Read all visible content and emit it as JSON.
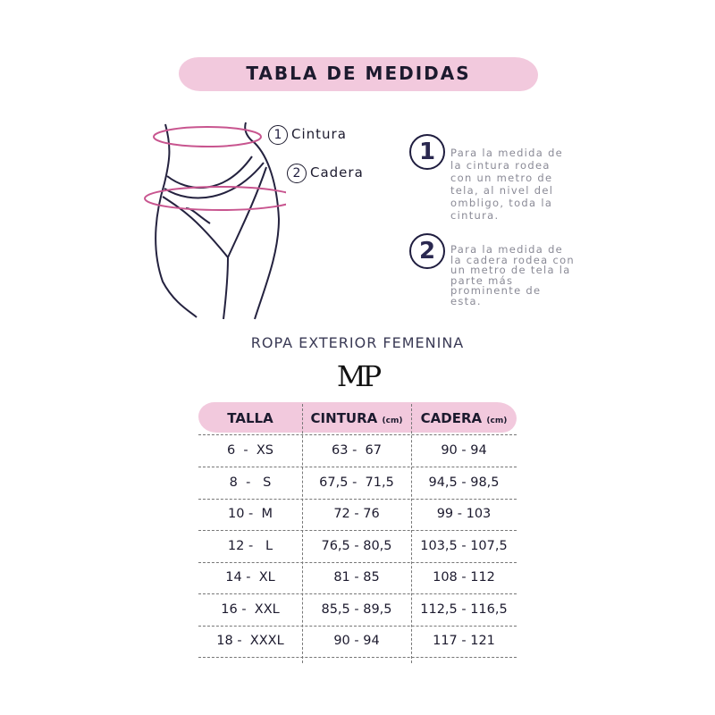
{
  "title": "TABLA DE MEDIDAS",
  "figure": {
    "labels": [
      {
        "num": "1",
        "text": "Cintura"
      },
      {
        "num": "2",
        "text": "Cadera"
      }
    ],
    "ring_color": "#c8558f"
  },
  "instructions": [
    {
      "num": "1",
      "text": "Para la medida de la cintura rodea con un metro de tela, al nivel del ombligo, toda la cintura."
    },
    {
      "num": "2",
      "text": "Para la medida de la cadera rodea con un metro de tela la parte más prominente de esta."
    }
  ],
  "subtitle": "ROPA EXTERIOR FEMENINA",
  "logo": "MP",
  "table": {
    "headers": [
      {
        "label": "TALLA",
        "unit": ""
      },
      {
        "label": "CINTURA",
        "unit": "(cm)"
      },
      {
        "label": "CADERA",
        "unit": "(cm)"
      }
    ],
    "rows": [
      [
        "6  -  XS",
        "63 -  67",
        "90 - 94"
      ],
      [
        "8  -   S",
        "67,5 -  71,5",
        "94,5 - 98,5"
      ],
      [
        "10 -  M",
        "72 - 76",
        "99 - 103"
      ],
      [
        "12 -   L",
        "76,5 - 80,5",
        "103,5 - 107,5"
      ],
      [
        "14 -  XL",
        "81 - 85",
        "108 - 112"
      ],
      [
        "16 -  XXL",
        "85,5 - 89,5",
        "112,5 - 116,5"
      ],
      [
        "18 -  XXXL",
        "90 - 94",
        "117 - 121"
      ]
    ]
  },
  "colors": {
    "accent_pink": "#f2c9dd",
    "text_navy": "#1f1d3f"
  }
}
